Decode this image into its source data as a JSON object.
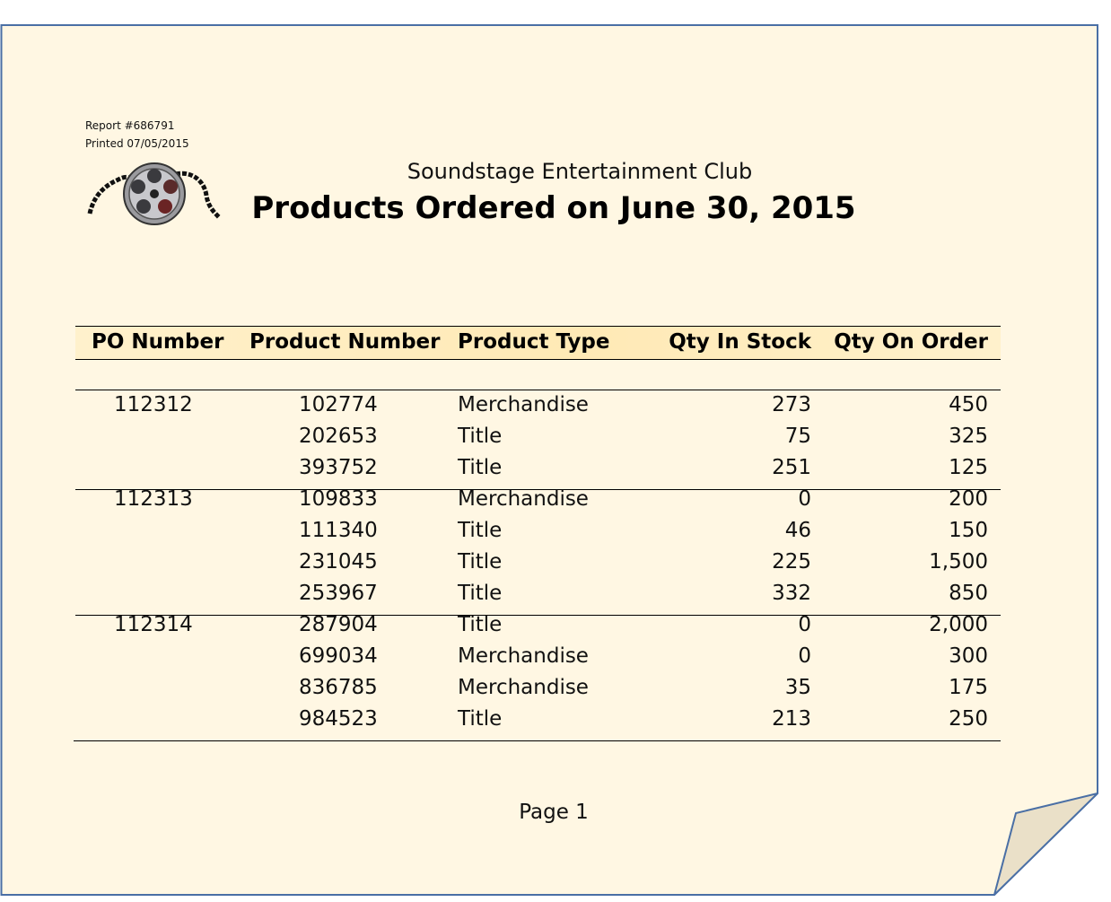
{
  "report": {
    "number": "Report #686791",
    "printed": "Printed 07/05/2015",
    "organization": "Soundstage Entertainment Club",
    "title": "Products Ordered on June 30, 2015",
    "page_label": "Page 1",
    "logo_icon": "film-reel-icon"
  },
  "colors": {
    "paper": "#fff7e3",
    "paper_border": "#4a6fa5",
    "header_band": "#ffe9b5",
    "curl": "#eae0c8"
  },
  "table": {
    "columns": [
      "PO Number",
      "Product Number",
      "Product Type",
      "Qty In Stock",
      "Qty On Order"
    ],
    "groups": [
      {
        "po": "112312",
        "rows": [
          {
            "product": "102774",
            "type": "Merchandise",
            "stock": "273",
            "order": "450"
          },
          {
            "product": "202653",
            "type": "Title",
            "stock": "75",
            "order": "325"
          },
          {
            "product": "393752",
            "type": "Title",
            "stock": "251",
            "order": "125"
          }
        ]
      },
      {
        "po": "112313",
        "rows": [
          {
            "product": "109833",
            "type": "Merchandise",
            "stock": "0",
            "order": "200"
          },
          {
            "product": "111340",
            "type": "Title",
            "stock": "46",
            "order": "150"
          },
          {
            "product": "231045",
            "type": "Title",
            "stock": "225",
            "order": "1,500"
          },
          {
            "product": "253967",
            "type": "Title",
            "stock": "332",
            "order": "850"
          }
        ]
      },
      {
        "po": "112314",
        "rows": [
          {
            "product": "287904",
            "type": "Title",
            "stock": "0",
            "order": "2,000"
          },
          {
            "product": "699034",
            "type": "Merchandise",
            "stock": "0",
            "order": "300"
          },
          {
            "product": "836785",
            "type": "Merchandise",
            "stock": "35",
            "order": "175"
          },
          {
            "product": "984523",
            "type": "Title",
            "stock": "213",
            "order": "250"
          }
        ]
      }
    ]
  }
}
